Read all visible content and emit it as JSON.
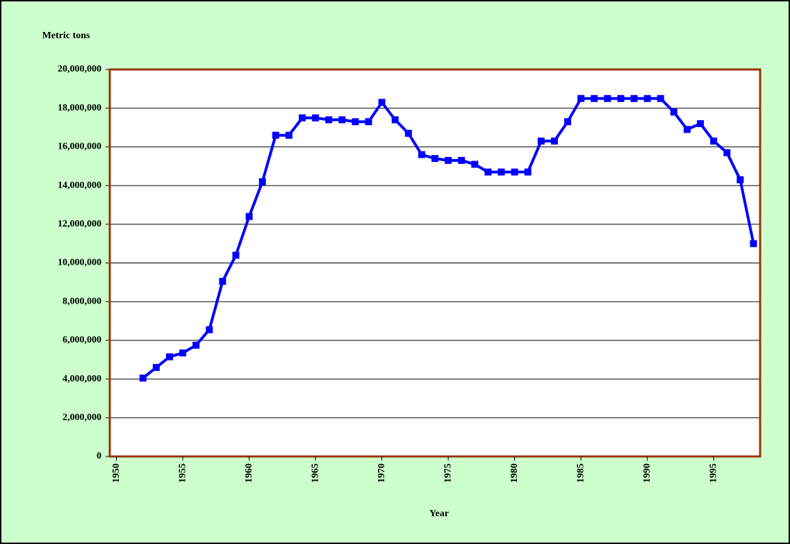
{
  "chart_data": {
    "type": "line",
    "y_label": "Metric tons",
    "x_label": "Year",
    "x": [
      1952,
      1953,
      1954,
      1955,
      1956,
      1957,
      1958,
      1959,
      1960,
      1961,
      1962,
      1963,
      1964,
      1965,
      1966,
      1967,
      1968,
      1969,
      1970,
      1971,
      1972,
      1973,
      1974,
      1975,
      1976,
      1977,
      1978,
      1979,
      1980,
      1981,
      1982,
      1983,
      1984,
      1985,
      1986,
      1987,
      1988,
      1989,
      1990,
      1991,
      1992,
      1993,
      1994,
      1995,
      1996,
      1997,
      1998
    ],
    "series": [
      {
        "color": "#0000ff",
        "values": [
          4050000,
          4600000,
          5150000,
          5350000,
          5750000,
          6550000,
          9050000,
          10400000,
          12400000,
          14200000,
          16600000,
          16600000,
          17500000,
          17500000,
          17400000,
          17400000,
          17300000,
          17300000,
          18300000,
          17400000,
          16700000,
          15600000,
          15400000,
          15300000,
          15300000,
          15100000,
          14700000,
          14700000,
          14700000,
          14700000,
          16300000,
          16300000,
          17300000,
          18500000,
          18500000,
          18500000,
          18500000,
          18500000,
          18500000,
          18500000,
          17800000,
          16900000,
          17200000,
          16300000,
          15700000,
          14300000,
          11000000
        ]
      }
    ],
    "xlim": [
      1949.5,
      1998.5
    ],
    "xticks": [
      1950,
      1955,
      1960,
      1965,
      1970,
      1975,
      1980,
      1985,
      1990,
      1995
    ],
    "ylim": [
      0,
      20000000
    ],
    "yticks": [
      0,
      {
        "value": 2000000,
        "label": "2,000,000"
      },
      {
        "value": 4000000,
        "label": "4,000,000"
      },
      {
        "value": 6000000,
        "label": "6,000,000"
      },
      {
        "value": 8000000,
        "label": "8,000,000"
      },
      {
        "value": 10000000,
        "label": "10,000,000"
      },
      {
        "value": 12000000,
        "label": "12,000,000"
      },
      {
        "value": 14000000,
        "label": "14,000,000"
      },
      {
        "value": 16000000,
        "label": "16,000,000"
      },
      {
        "value": 18000000,
        "label": "18,000,000"
      },
      {
        "value": 20000000,
        "label": "20,000,000"
      }
    ],
    "grid": true
  }
}
